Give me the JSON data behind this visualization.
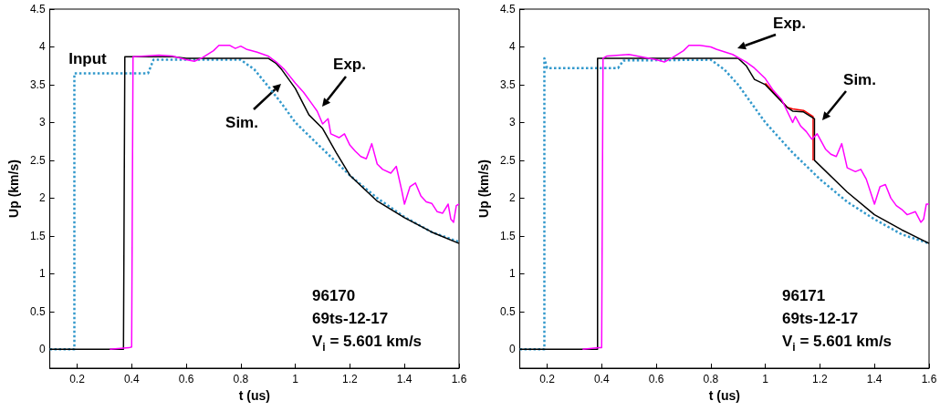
{
  "chart_data": [
    {
      "type": "line",
      "xlabel": "t (us)",
      "ylabel": "Up (km/s)",
      "xlim": [
        0.1,
        1.6
      ],
      "xticks": [
        0.2,
        0.4,
        0.6,
        0.8,
        1,
        1.2,
        1.4,
        1.6
      ],
      "ylim": [
        -0.25,
        4.5
      ],
      "yticks": [
        0,
        0.5,
        1,
        1.5,
        2,
        2.5,
        3,
        3.5,
        4,
        4.5
      ],
      "grid": false,
      "marker": "none",
      "series": [
        {
          "color": "#3399cc",
          "line_style": "dotted",
          "x": [
            0.1,
            0.19,
            0.19,
            0.46,
            0.48,
            0.8,
            0.85,
            0.9,
            0.95,
            1.0,
            1.1,
            1.2,
            1.3,
            1.4,
            1.5,
            1.6
          ],
          "values": [
            0,
            0,
            3.65,
            3.65,
            3.83,
            3.83,
            3.7,
            3.48,
            3.25,
            3.0,
            2.65,
            2.3,
            2.0,
            1.75,
            1.55,
            1.42
          ]
        },
        {
          "color": "#000000",
          "line_style": "solid",
          "x": [
            0.1,
            0.37,
            0.375,
            0.55,
            0.6,
            0.9,
            0.93,
            0.95,
            1.0,
            1.05,
            1.1,
            1.15,
            1.2,
            1.3,
            1.4,
            1.5,
            1.6
          ],
          "values": [
            0,
            0,
            3.87,
            3.87,
            3.85,
            3.85,
            3.78,
            3.7,
            3.45,
            3.1,
            2.92,
            2.6,
            2.3,
            1.96,
            1.74,
            1.55,
            1.4
          ]
        },
        {
          "color": "#ff00ff",
          "line_style": "solid",
          "x": [
            0.32,
            0.39,
            0.4,
            0.405,
            0.45,
            0.5,
            0.55,
            0.6,
            0.63,
            0.66,
            0.7,
            0.72,
            0.76,
            0.78,
            0.8,
            0.82,
            0.86,
            0.9,
            0.93,
            0.96,
            1.0,
            1.03,
            1.06,
            1.08,
            1.1,
            1.12,
            1.13,
            1.16,
            1.18,
            1.2,
            1.22,
            1.24,
            1.26,
            1.28,
            1.3,
            1.32,
            1.35,
            1.37,
            1.39,
            1.4,
            1.42,
            1.44,
            1.46,
            1.48,
            1.5,
            1.52,
            1.54,
            1.56,
            1.57,
            1.58,
            1.59,
            1.6
          ],
          "values": [
            0,
            0.02,
            0.03,
            3.87,
            3.88,
            3.89,
            3.88,
            3.83,
            3.81,
            3.86,
            3.95,
            4.02,
            4.02,
            3.98,
            4.01,
            3.97,
            3.93,
            3.88,
            3.8,
            3.7,
            3.52,
            3.4,
            3.25,
            3.15,
            2.98,
            3.05,
            2.85,
            2.8,
            2.85,
            2.7,
            2.62,
            2.55,
            2.52,
            2.72,
            2.45,
            2.38,
            2.33,
            2.42,
            2.1,
            1.92,
            2.15,
            2.2,
            2.03,
            1.95,
            1.93,
            1.82,
            1.8,
            1.92,
            1.72,
            1.68,
            1.9,
            1.92
          ]
        }
      ],
      "annotations": [
        "Input",
        "Exp.",
        "Sim.",
        "96170",
        "69ts-12-17",
        "V$_{i}$ = 5.601 km/s"
      ]
    },
    {
      "type": "line",
      "xlabel": "t (us)",
      "ylabel": "Up (km/s)",
      "xlim": [
        0.1,
        1.6
      ],
      "xticks": [
        0.2,
        0.4,
        0.6,
        0.8,
        1,
        1.2,
        1.4,
        1.6
      ],
      "ylim": [
        -0.25,
        4.5
      ],
      "yticks": [
        0,
        0.5,
        1,
        1.5,
        2,
        2.5,
        3,
        3.5,
        4,
        4.5
      ],
      "grid": false,
      "marker": "none",
      "series": [
        {
          "color": "#3399cc",
          "line_style": "dotted",
          "x": [
            0.1,
            0.19,
            0.19,
            0.2,
            0.46,
            0.48,
            0.8,
            0.85,
            0.9,
            0.95,
            1.0,
            1.1,
            1.2,
            1.3,
            1.4,
            1.5,
            1.6
          ],
          "values": [
            0,
            0,
            3.85,
            3.72,
            3.72,
            3.82,
            3.83,
            3.7,
            3.5,
            3.25,
            3.0,
            2.6,
            2.25,
            1.95,
            1.72,
            1.52,
            1.4
          ]
        },
        {
          "color": "#ff0000",
          "line_style": "solid",
          "x": [
            1.0,
            1.04,
            1.08,
            1.1,
            1.14,
            1.175,
            1.175
          ],
          "values": [
            3.52,
            3.36,
            3.2,
            3.18,
            3.16,
            3.08,
            2.5
          ]
        },
        {
          "color": "#000000",
          "line_style": "solid",
          "x": [
            0.1,
            0.385,
            0.385,
            0.9,
            0.93,
            0.96,
            1.0,
            1.04,
            1.08,
            1.1,
            1.14,
            1.18,
            1.18,
            1.3,
            1.4,
            1.5,
            1.6
          ],
          "values": [
            0,
            0,
            3.85,
            3.85,
            3.75,
            3.57,
            3.5,
            3.35,
            3.2,
            3.15,
            3.14,
            3.05,
            2.5,
            2.08,
            1.78,
            1.58,
            1.4
          ]
        },
        {
          "color": "#ff00ff",
          "line_style": "solid",
          "x": [
            0.33,
            0.39,
            0.4,
            0.405,
            0.42,
            0.5,
            0.6,
            0.63,
            0.66,
            0.7,
            0.72,
            0.76,
            0.8,
            0.82,
            0.88,
            0.93,
            0.96,
            1.0,
            1.03,
            1.06,
            1.08,
            1.1,
            1.11,
            1.13,
            1.15,
            1.17,
            1.19,
            1.22,
            1.24,
            1.26,
            1.28,
            1.3,
            1.33,
            1.35,
            1.37,
            1.4,
            1.42,
            1.44,
            1.46,
            1.48,
            1.5,
            1.52,
            1.55,
            1.57,
            1.58,
            1.59,
            1.6
          ],
          "values": [
            0,
            0.02,
            0.02,
            3.85,
            3.88,
            3.9,
            3.83,
            3.8,
            3.86,
            3.95,
            4.02,
            4.02,
            4.0,
            3.97,
            3.9,
            3.8,
            3.72,
            3.58,
            3.42,
            3.3,
            3.15,
            3.0,
            3.08,
            2.95,
            2.88,
            2.78,
            2.85,
            2.65,
            2.58,
            2.55,
            2.72,
            2.4,
            2.35,
            2.38,
            2.25,
            1.92,
            2.15,
            2.18,
            2.0,
            1.9,
            1.85,
            1.78,
            1.82,
            1.68,
            1.72,
            1.92,
            1.92
          ]
        }
      ],
      "annotations": [
        "Exp.",
        "Sim.",
        "96171",
        "69ts-12-17",
        "V$_{i}$ = 5.601 km/s"
      ]
    }
  ]
}
